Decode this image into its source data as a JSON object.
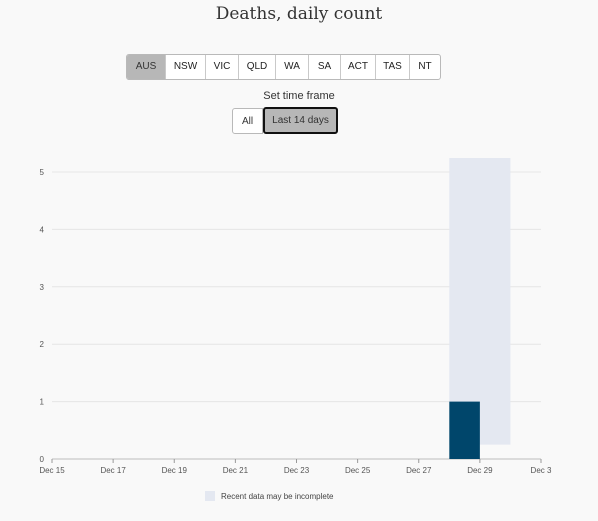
{
  "title": "Deaths, daily count",
  "regions": [
    {
      "label": "AUS",
      "active": true
    },
    {
      "label": "NSW",
      "active": false
    },
    {
      "label": "VIC",
      "active": false
    },
    {
      "label": "QLD",
      "active": false
    },
    {
      "label": "WA",
      "active": false
    },
    {
      "label": "SA",
      "active": false
    },
    {
      "label": "ACT",
      "active": false
    },
    {
      "label": "TAS",
      "active": false
    },
    {
      "label": "NT",
      "active": false
    }
  ],
  "time_frame": {
    "label": "Set time frame",
    "all_label": "All",
    "last14_label": "Last 14 days",
    "selected": "last14"
  },
  "legend": {
    "incomplete_label": "Recent data may be incomplete"
  },
  "colors": {
    "bar": "#00466b",
    "incomplete": "#e4e8f1",
    "grid": "#e6e6e6"
  },
  "chart_data": {
    "type": "bar",
    "title": "Deaths, daily count",
    "xlabel": "",
    "ylabel": "",
    "x_ticks": [
      "Dec 15",
      "Dec 17",
      "Dec 19",
      "Dec 21",
      "Dec 23",
      "Dec 25",
      "Dec 27",
      "Dec 29",
      "Dec 3"
    ],
    "y_ticks": [
      0,
      1,
      2,
      3,
      4,
      5
    ],
    "ylim": [
      0,
      5
    ],
    "bars": [
      {
        "date": "Dec 28",
        "value": 1
      }
    ],
    "incomplete_region": {
      "from": "Dec 28",
      "to": "Dec 30",
      "label": "Recent data may be incomplete"
    },
    "grid": true,
    "legend_position": "bottom"
  }
}
